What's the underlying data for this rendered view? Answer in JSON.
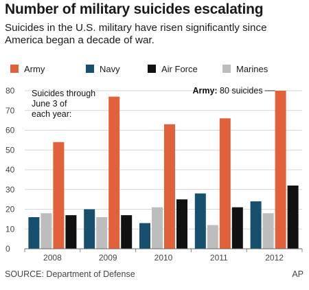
{
  "header": {
    "title": "Number of military suicides escalating",
    "subtitle": "Suicides in the U.S. military have risen significantly since America began a decade of war."
  },
  "footer": {
    "source": "SOURCE: Department of Defense",
    "credit": "AP"
  },
  "chart_data": {
    "type": "bar",
    "title": "Number of military suicides escalating",
    "subtitle": "Suicides in the U.S. military have risen significantly since America began a decade of war.",
    "categories": [
      "2008",
      "2009",
      "2010",
      "2011",
      "2012"
    ],
    "series": [
      {
        "name": "Army",
        "color": "#e0613a",
        "values": [
          54,
          77,
          63,
          66,
          80
        ]
      },
      {
        "name": "Navy",
        "color": "#17506e",
        "values": [
          16,
          20,
          13,
          28,
          24
        ]
      },
      {
        "name": "Air Force",
        "color": "#111111",
        "values": [
          17,
          17,
          25,
          21,
          32
        ]
      },
      {
        "name": "Marines",
        "color": "#bdbdbd",
        "values": [
          18,
          16,
          21,
          12,
          18
        ]
      }
    ],
    "bar_order": [
      "Navy",
      "Marines",
      "Army",
      "Air Force"
    ],
    "ylim": [
      0,
      80
    ],
    "yticks": [
      0,
      10,
      20,
      30,
      40,
      50,
      60,
      70,
      80
    ],
    "grid": true,
    "legend_position": "top",
    "note": [
      "Suicides through",
      "June 3 of",
      "each year:"
    ],
    "callout": {
      "bold": "Army:",
      "text": " 80 suicides",
      "category": "2012",
      "series": "Army"
    }
  }
}
